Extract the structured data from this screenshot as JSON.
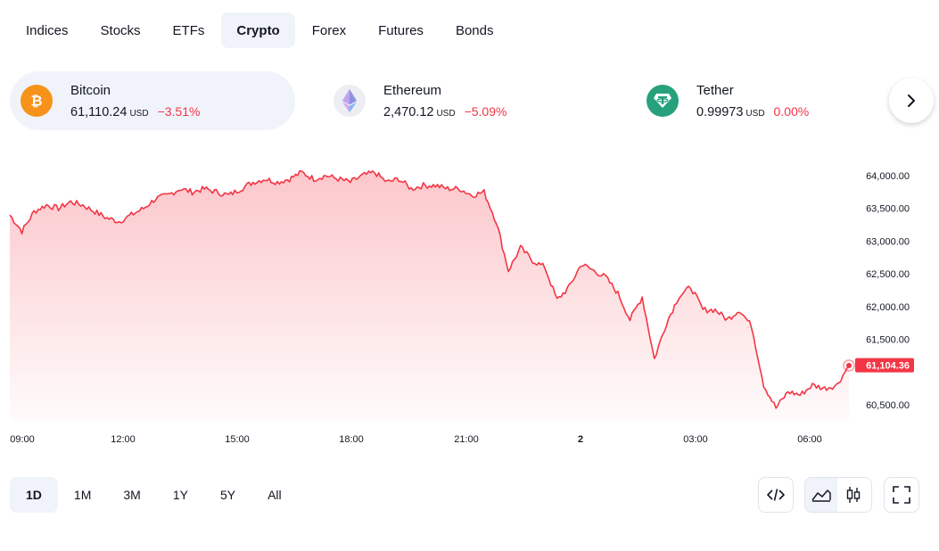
{
  "tabs": [
    "Indices",
    "Stocks",
    "ETFs",
    "Crypto",
    "Forex",
    "Futures",
    "Bonds"
  ],
  "active_tab": "Crypto",
  "tickers": [
    {
      "name": "Bitcoin",
      "price": "61,110.24",
      "unit": "USD",
      "change": "−3.51%",
      "icon": "bitcoin-icon",
      "color": "#f7931a"
    },
    {
      "name": "Ethereum",
      "price": "2,470.12",
      "unit": "USD",
      "change": "−5.09%",
      "icon": "ethereum-icon",
      "color": "#e8eaf0"
    },
    {
      "name": "Tether",
      "price": "0.99973",
      "unit": "USD",
      "change": "0.00%",
      "icon": "tether-icon",
      "color": "#26a17b"
    }
  ],
  "next_icon": "chevron-right-icon",
  "ranges": [
    "1D",
    "1M",
    "3M",
    "1Y",
    "5Y",
    "All"
  ],
  "active_range": "1D",
  "tools": {
    "embed_icon": "code-icon",
    "area_icon": "area-chart-icon",
    "candle_icon": "candlestick-icon",
    "fullscreen_icon": "fullscreen-icon"
  },
  "colors": {
    "down": "#f23645",
    "accent_bg": "#f0f3fa"
  },
  "chart_data": {
    "type": "area",
    "series": [
      {
        "name": "Bitcoin",
        "values": [
          63400,
          63150,
          63450,
          63550,
          63500,
          63600,
          63550,
          63450,
          63350,
          63300,
          63400,
          63500,
          63650,
          63700,
          63800,
          63750,
          63800,
          63750,
          63700,
          63800,
          63900,
          63950,
          63900,
          63950,
          64050,
          63950,
          64000,
          63950,
          63900,
          64000,
          64050,
          63900,
          63950,
          63800,
          63850,
          63850,
          63800,
          63800,
          63700,
          63750,
          63300,
          62550,
          62900,
          62700,
          62600,
          62100,
          62300,
          62650,
          62550,
          62450,
          62200,
          61800,
          62150,
          61200,
          61750,
          62150,
          62300,
          61950,
          61950,
          61800,
          61950,
          61700,
          60800,
          60450,
          60700,
          60650,
          60800,
          60750,
          60800,
          61100
        ]
      }
    ],
    "x_ticks": [
      "09:00",
      "12:00",
      "15:00",
      "18:00",
      "21:00",
      "2",
      "03:00",
      "06:00"
    ],
    "y_ticks": [
      "64,000.00",
      "63,500.00",
      "63,000.00",
      "62,500.00",
      "62,000.00",
      "61,500.00",
      "60,500.00"
    ],
    "last_value_label": "61,104.36",
    "ylim": [
      60300,
      64300
    ],
    "grid": false
  }
}
